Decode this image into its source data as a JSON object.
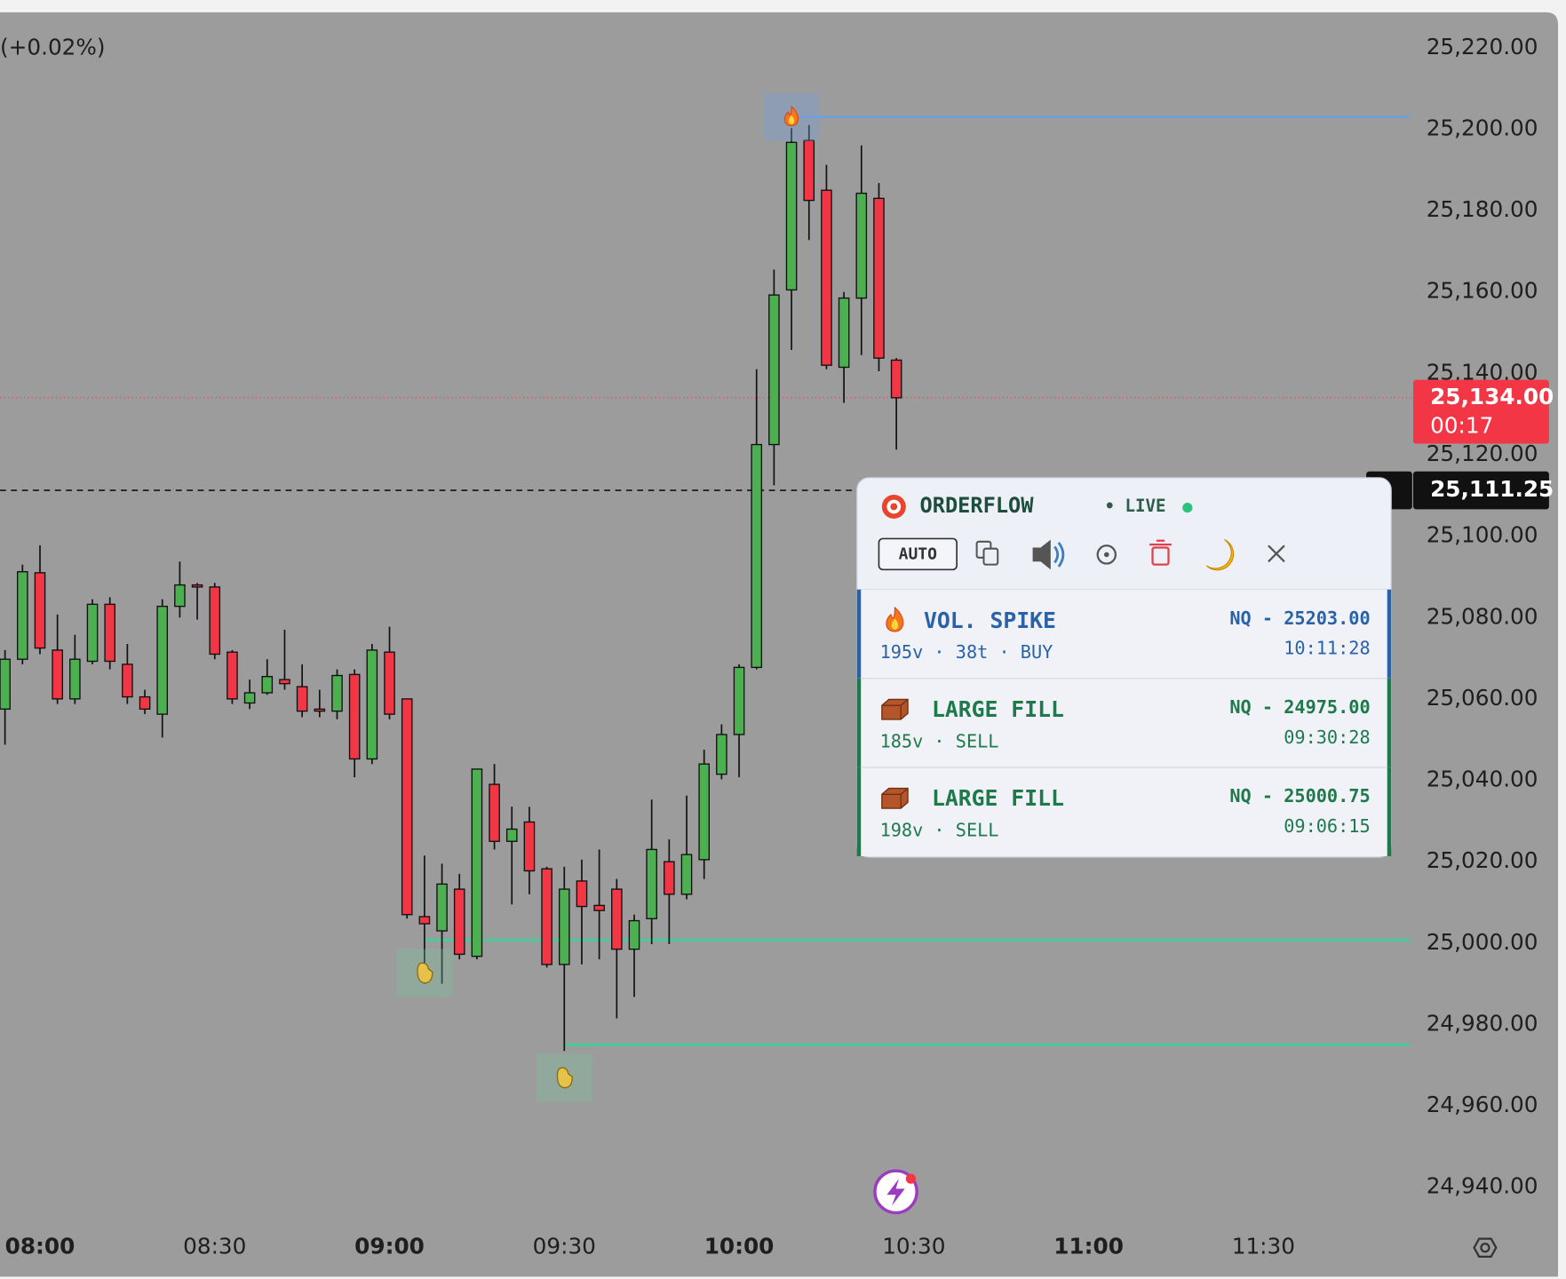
{
  "chart_data": {
    "type": "candlestick",
    "change_label": "(+0.02%)",
    "x": [
      474,
      477,
      480,
      483,
      486,
      489,
      492,
      495,
      498,
      501,
      504,
      507,
      510,
      513,
      516,
      519,
      522,
      525,
      528,
      531,
      534,
      537,
      540,
      543,
      546,
      549,
      552,
      555,
      558,
      561,
      564,
      567,
      570,
      573,
      576,
      579,
      582,
      585,
      588,
      591,
      594,
      597,
      600,
      603,
      606,
      609,
      612,
      615,
      618,
      621,
      624,
      627
    ],
    "open": [
      25057.5,
      25069.75,
      25091,
      25072,
      25060,
      25069.25,
      25083.25,
      25068.5,
      25060.5,
      25056.25,
      25082.75,
      25088,
      25087.5,
      25071.5,
      25059,
      25061.5,
      25064.75,
      25063,
      25057.5,
      25057,
      25066,
      25045.25,
      25071.5,
      25060,
      25006.5,
      25003,
      25013.25,
      24996.75,
      25039,
      25025,
      25029.75,
      25018.25,
      24994.75,
      25015.25,
      25009.25,
      25013.25,
      24998.5,
      25006,
      25020,
      25012,
      25020.5,
      25041.5,
      25051.25,
      25067.75,
      25122.5,
      25160.5,
      25197.25,
      25185,
      25141.5,
      25158.5,
      25183,
      25143.25
    ],
    "high": [
      25072,
      25093,
      25097.75,
      25080.75,
      25075.75,
      25084.5,
      25085,
      25073.5,
      25062.25,
      25084.5,
      25093.75,
      25088.5,
      25088.5,
      25072,
      25064.75,
      25069.75,
      25077,
      25068.5,
      25062.25,
      25067.25,
      25067.25,
      25073.5,
      25077.75,
      25060,
      25021.5,
      25019.5,
      25017,
      25042.75,
      25044,
      25033.5,
      25033.5,
      25018.75,
      25018.75,
      25020.5,
      25023,
      25015.75,
      25007,
      25035.25,
      25025.5,
      25036.25,
      25047.5,
      25053.75,
      25068.5,
      25141,
      25165.5,
      25200.25,
      25201,
      25191.25,
      25160,
      25196,
      25186.75,
      25143.75
    ],
    "low": [
      25048.75,
      25068.5,
      25071,
      25058.75,
      25058.75,
      25068.5,
      25067.25,
      25058.75,
      25056.25,
      25050.5,
      25080,
      25079.5,
      25069.75,
      25058.75,
      25057.5,
      25061,
      25062.25,
      25055.5,
      25055.5,
      25055,
      25040.75,
      25044,
      25055,
      25006,
      24990,
      24990,
      24996,
      24996,
      25023,
      25009.5,
      25012,
      24994,
      24973.5,
      24994.75,
      24996,
      24981.5,
      24986.75,
      24999.75,
      24999.75,
      25010.75,
      25015.75,
      25040.25,
      25040.75,
      25067.25,
      25112.5,
      25145.75,
      25172.75,
      25141,
      25132.75,
      25144.5,
      25140.5,
      25121.25
    ],
    "close": [
      25069.75,
      25091.25,
      25072.5,
      25060,
      25069.75,
      25083.25,
      25069.25,
      25060.5,
      25057.5,
      25082.75,
      25088,
      25087.5,
      25071,
      25060,
      25061.5,
      25065.5,
      25063.75,
      25057,
      25057,
      25065.75,
      25045.25,
      25072,
      25056.25,
      25007,
      25004.75,
      25014.5,
      24997.25,
      25042.75,
      25025,
      25028,
      25017.75,
      24994.75,
      25013.25,
      25009,
      25008,
      24998.5,
      25005.5,
      25023,
      25012,
      25021.75,
      25044,
      25051.25,
      25067.75,
      25122.5,
      25159.25,
      25196.75,
      25182.5,
      25142,
      25158.5,
      25184.25,
      25143.75,
      25134
    ],
    "up_color": "#4caf50",
    "down_color": "#f23645",
    "xlim": [
      473.14,
      715.71
    ],
    "ylim": [
      24931.04,
      25228.71
    ],
    "xticks": [
      {
        "value": 480,
        "label": "08:00"
      },
      {
        "value": 510,
        "label": "08:30"
      },
      {
        "value": 540,
        "label": "09:00"
      },
      {
        "value": 570,
        "label": "09:30"
      },
      {
        "value": 600,
        "label": "10:00"
      },
      {
        "value": 630,
        "label": "10:30"
      },
      {
        "value": 660,
        "label": "11:00"
      },
      {
        "value": 690,
        "label": "11:30"
      }
    ],
    "yticks": [
      {
        "value": 24940,
        "label": "24,940.00"
      },
      {
        "value": 24960,
        "label": "24,960.00"
      },
      {
        "value": 24980,
        "label": "24,980.00"
      },
      {
        "value": 25000,
        "label": "25,000.00"
      },
      {
        "value": 25020,
        "label": "25,020.00"
      },
      {
        "value": 25040,
        "label": "25,040.00"
      },
      {
        "value": 25060,
        "label": "25,060.00"
      },
      {
        "value": 25080,
        "label": "25,080.00"
      },
      {
        "value": 25100,
        "label": "25,100.00"
      },
      {
        "value": 25120,
        "label": "25,120.00"
      },
      {
        "value": 25140,
        "label": "25,140.00"
      },
      {
        "value": 25160,
        "label": "25,160.00"
      },
      {
        "value": 25180,
        "label": "25,180.00"
      },
      {
        "value": 25200,
        "label": "25,200.00"
      },
      {
        "value": 25220,
        "label": "25,220.00"
      }
    ],
    "last_price": {
      "value": 25134,
      "label": "25,134.00",
      "countdown": "00:17",
      "color": "#f23645"
    },
    "crosshair": {
      "value": 25111.25,
      "label": "25,111.25"
    }
  },
  "orderflow_panel": {
    "title": "ORDERFLOW",
    "status": "• LIVE",
    "mode": "AUTO",
    "alerts": [
      {
        "icon": "flame",
        "label": "VOL. SPIKE",
        "details": "195v · 38t · BUY",
        "price_label": "NQ - 25203.00",
        "price": 25203,
        "time": "10:11:28",
        "color": "#2a62a8",
        "line_color": "#6d9fd8"
      },
      {
        "icon": "brick",
        "label": "LARGE FILL",
        "details": "185v · SELL",
        "price_label": "NQ - 24975.00",
        "price": 24975,
        "time": "09:30:28",
        "color": "#1e7a4b",
        "line_color": "#3ecf9a"
      },
      {
        "icon": "brick",
        "label": "LARGE FILL",
        "details": "198v · SELL",
        "price_label": "NQ - 25000.75",
        "price": 25000.75,
        "time": "09:06:15",
        "color": "#1e7a4b",
        "line_color": "#3ecf9a"
      }
    ]
  }
}
